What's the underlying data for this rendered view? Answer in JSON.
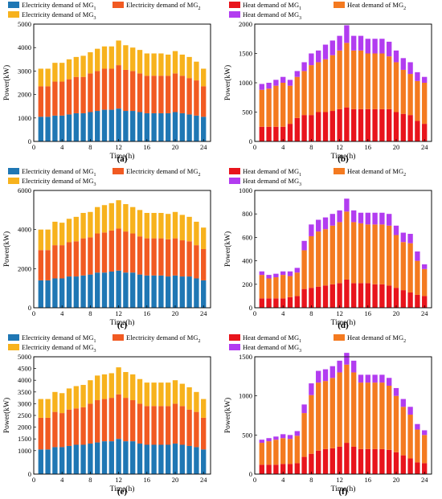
{
  "colors": {
    "elec_mg1": "#1f77b4",
    "elec_mg2": "#f15a22",
    "elec_mg3": "#f7b21d",
    "heat_mg1": "#e8141c",
    "heat_mg2": "#f47a20",
    "heat_mg3": "#b23cf0"
  },
  "chart_data": [
    {
      "panel_label": "(a)",
      "type": "bar",
      "stacked": true,
      "xlabel": "Time(h)",
      "ylabel": "Power(kW)",
      "xlim": [
        0,
        25
      ],
      "ylim": [
        0,
        5000
      ],
      "xticks": [
        "0",
        "4",
        "8",
        "12",
        "16",
        "20",
        "24"
      ],
      "yticks": [
        "0",
        "1000",
        "2000",
        "3000",
        "4000",
        "5000"
      ],
      "legend_position": "top",
      "categories": [
        1,
        2,
        3,
        4,
        5,
        6,
        7,
        8,
        9,
        10,
        11,
        12,
        13,
        14,
        15,
        16,
        17,
        18,
        19,
        20,
        21,
        22,
        23,
        24
      ],
      "series": [
        {
          "name": "Electricity demand of MG",
          "sub": "1",
          "color_key": "elec_mg1",
          "values": [
            1050,
            1050,
            1100,
            1100,
            1150,
            1200,
            1200,
            1250,
            1300,
            1350,
            1350,
            1400,
            1300,
            1300,
            1250,
            1200,
            1200,
            1200,
            1200,
            1250,
            1200,
            1150,
            1100,
            1050
          ]
        },
        {
          "name": "Electricity demand of MG",
          "sub": "2",
          "color_key": "elec_mg2",
          "values": [
            1300,
            1300,
            1450,
            1450,
            1500,
            1550,
            1550,
            1650,
            1700,
            1750,
            1750,
            1850,
            1750,
            1700,
            1650,
            1600,
            1600,
            1600,
            1600,
            1650,
            1600,
            1550,
            1500,
            1300
          ]
        },
        {
          "name": "Electricity demand of MG",
          "sub": "3",
          "color_key": "elec_mg3",
          "values": [
            750,
            750,
            800,
            800,
            850,
            850,
            900,
            900,
            950,
            950,
            950,
            1050,
            1050,
            1000,
            1000,
            950,
            950,
            950,
            900,
            950,
            900,
            900,
            800,
            750
          ]
        }
      ]
    },
    {
      "panel_label": "(b)",
      "type": "bar",
      "stacked": true,
      "xlabel": "Time(h)",
      "ylabel": "Power(kW)",
      "xlim": [
        0,
        25
      ],
      "ylim": [
        0,
        2000
      ],
      "xticks": [
        "0",
        "4",
        "8",
        "12",
        "16",
        "20",
        "24"
      ],
      "yticks": [
        "0",
        "500",
        "1000",
        "1500",
        "2000"
      ],
      "legend_position": "top",
      "categories": [
        1,
        2,
        3,
        4,
        5,
        6,
        7,
        8,
        9,
        10,
        11,
        12,
        13,
        14,
        15,
        16,
        17,
        18,
        19,
        20,
        21,
        22,
        23,
        24
      ],
      "series": [
        {
          "name": "Heat demand of MG",
          "sub": "1",
          "color_key": "heat_mg1",
          "values": [
            250,
            250,
            250,
            250,
            300,
            400,
            450,
            450,
            500,
            500,
            520,
            550,
            580,
            550,
            550,
            550,
            550,
            550,
            550,
            500,
            470,
            450,
            350,
            300
          ]
        },
        {
          "name": "Heat demand of MG",
          "sub": "2",
          "color_key": "heat_mg2",
          "values": [
            630,
            650,
            700,
            750,
            650,
            700,
            750,
            850,
            850,
            900,
            950,
            1000,
            1100,
            1000,
            1000,
            950,
            950,
            950,
            900,
            850,
            750,
            700,
            680,
            700
          ]
        },
        {
          "name": "Heat demand of MG",
          "sub": "3",
          "color_key": "heat_mg3",
          "values": [
            100,
            100,
            100,
            100,
            100,
            100,
            150,
            200,
            200,
            250,
            250,
            250,
            300,
            250,
            250,
            250,
            250,
            250,
            250,
            200,
            200,
            200,
            150,
            100
          ]
        }
      ]
    },
    {
      "panel_label": "(c)",
      "type": "bar",
      "stacked": true,
      "xlabel": "Time(h)",
      "ylabel": "Power(kW)",
      "xlim": [
        0,
        25
      ],
      "ylim": [
        0,
        6000
      ],
      "xticks": [
        "0",
        "4",
        "8",
        "12",
        "16",
        "20",
        "24"
      ],
      "yticks": [
        "0",
        "2000",
        "4000",
        "6000"
      ],
      "legend_position": "top",
      "categories": [
        1,
        2,
        3,
        4,
        5,
        6,
        7,
        8,
        9,
        10,
        11,
        12,
        13,
        14,
        15,
        16,
        17,
        18,
        19,
        20,
        21,
        22,
        23,
        24
      ],
      "series": [
        {
          "name": "Electricity demand of MG",
          "sub": "1",
          "color_key": "elec_mg1",
          "values": [
            1400,
            1400,
            1500,
            1500,
            1600,
            1600,
            1650,
            1700,
            1800,
            1800,
            1850,
            1900,
            1800,
            1800,
            1700,
            1650,
            1650,
            1650,
            1600,
            1650,
            1600,
            1600,
            1500,
            1400
          ]
        },
        {
          "name": "Electricity demand of MG",
          "sub": "2",
          "color_key": "elec_mg2",
          "values": [
            1550,
            1550,
            1700,
            1700,
            1750,
            1800,
            1900,
            1900,
            2000,
            2050,
            2100,
            2150,
            2100,
            2000,
            1950,
            1900,
            1900,
            1900,
            1900,
            1900,
            1850,
            1800,
            1700,
            1600
          ]
        },
        {
          "name": "Electricity demand of MG",
          "sub": "3",
          "color_key": "elec_mg3",
          "values": [
            1050,
            1050,
            1200,
            1150,
            1200,
            1250,
            1300,
            1300,
            1350,
            1400,
            1400,
            1450,
            1400,
            1350,
            1350,
            1300,
            1300,
            1300,
            1300,
            1350,
            1300,
            1250,
            1200,
            1100
          ]
        }
      ]
    },
    {
      "panel_label": "(d)",
      "type": "bar",
      "stacked": true,
      "xlabel": "Time(h)",
      "ylabel": "Power(kW)",
      "xlim": [
        0,
        25
      ],
      "ylim": [
        0,
        1000
      ],
      "xticks": [
        "0",
        "4",
        "8",
        "12",
        "16",
        "20",
        "24"
      ],
      "yticks": [
        "0",
        "200",
        "400",
        "600",
        "800",
        "1000"
      ],
      "legend_position": "top",
      "categories": [
        1,
        2,
        3,
        4,
        5,
        6,
        7,
        8,
        9,
        10,
        11,
        12,
        13,
        14,
        15,
        16,
        17,
        18,
        19,
        20,
        21,
        22,
        23,
        24
      ],
      "series": [
        {
          "name": "Heat demand of MG",
          "sub": "1",
          "color_key": "heat_mg1",
          "values": [
            80,
            80,
            80,
            80,
            90,
            100,
            160,
            170,
            180,
            190,
            200,
            210,
            240,
            210,
            210,
            210,
            200,
            200,
            190,
            170,
            150,
            130,
            110,
            100
          ]
        },
        {
          "name": "Heat demand of MG",
          "sub": "2",
          "color_key": "heat_mg2",
          "values": [
            200,
            170,
            180,
            200,
            180,
            200,
            330,
            440,
            470,
            480,
            500,
            520,
            580,
            520,
            510,
            500,
            510,
            510,
            510,
            450,
            410,
            420,
            290,
            230
          ]
        },
        {
          "name": "Heat demand of MG",
          "sub": "3",
          "color_key": "heat_mg3",
          "values": [
            30,
            30,
            30,
            30,
            40,
            40,
            80,
            100,
            100,
            100,
            100,
            100,
            110,
            100,
            90,
            100,
            100,
            100,
            100,
            80,
            80,
            80,
            80,
            40
          ]
        }
      ]
    },
    {
      "panel_label": "(e)",
      "type": "bar",
      "stacked": true,
      "xlabel": "Time(h)",
      "ylabel": "Power(kW)",
      "xlim": [
        0,
        25
      ],
      "ylim": [
        0,
        5000
      ],
      "xticks": [
        "0",
        "4",
        "8",
        "12",
        "16",
        "20",
        "24"
      ],
      "yticks": [
        "0",
        "1000",
        "1500",
        "2000",
        "2500",
        "3000",
        "3500",
        "4000",
        "4500",
        "5000"
      ],
      "legend_position": "top",
      "categories": [
        1,
        2,
        3,
        4,
        5,
        6,
        7,
        8,
        9,
        10,
        11,
        12,
        13,
        14,
        15,
        16,
        17,
        18,
        19,
        20,
        21,
        22,
        23,
        24
      ],
      "series": [
        {
          "name": "Electricity demand of MG",
          "sub": "1",
          "color_key": "elec_mg1",
          "values": [
            1050,
            1050,
            1150,
            1150,
            1200,
            1250,
            1250,
            1300,
            1350,
            1400,
            1400,
            1500,
            1400,
            1400,
            1300,
            1250,
            1250,
            1250,
            1250,
            1300,
            1250,
            1200,
            1150,
            1050
          ]
        },
        {
          "name": "Electricity demand of MG",
          "sub": "2",
          "color_key": "elec_mg2",
          "values": [
            1350,
            1350,
            1500,
            1450,
            1550,
            1550,
            1600,
            1700,
            1800,
            1800,
            1850,
            1900,
            1850,
            1750,
            1700,
            1650,
            1650,
            1650,
            1650,
            1700,
            1650,
            1550,
            1500,
            1350
          ]
        },
        {
          "name": "Electricity demand of MG",
          "sub": "3",
          "color_key": "elec_mg3",
          "values": [
            800,
            800,
            850,
            850,
            900,
            950,
            950,
            1000,
            1050,
            1050,
            1050,
            1150,
            1100,
            1100,
            1050,
            1000,
            1000,
            1000,
            1000,
            1000,
            950,
            950,
            850,
            800
          ]
        }
      ]
    },
    {
      "panel_label": "(f)",
      "type": "bar",
      "stacked": true,
      "xlabel": "Time(h)",
      "ylabel": "Power(kW)",
      "xlim": [
        0,
        25
      ],
      "ylim": [
        0,
        1500
      ],
      "xticks": [
        "0",
        "4",
        "8",
        "12",
        "16",
        "20",
        "24"
      ],
      "yticks": [
        "0",
        "500",
        "1000",
        "1500"
      ],
      "legend_position": "top",
      "categories": [
        1,
        2,
        3,
        4,
        5,
        6,
        7,
        8,
        9,
        10,
        11,
        12,
        13,
        14,
        15,
        16,
        17,
        18,
        19,
        20,
        21,
        22,
        23,
        24
      ],
      "series": [
        {
          "name": "Heat demand of MG",
          "sub": "1",
          "color_key": "heat_mg1",
          "values": [
            120,
            120,
            120,
            130,
            130,
            140,
            220,
            260,
            300,
            320,
            330,
            350,
            400,
            350,
            320,
            320,
            320,
            320,
            310,
            280,
            240,
            200,
            150,
            140
          ]
        },
        {
          "name": "Heat demand of MG",
          "sub": "2",
          "color_key": "heat_mg2",
          "values": [
            280,
            300,
            320,
            330,
            320,
            350,
            560,
            750,
            870,
            870,
            900,
            950,
            1000,
            950,
            850,
            850,
            850,
            850,
            820,
            720,
            620,
            560,
            420,
            360
          ]
        },
        {
          "name": "Heat demand of MG",
          "sub": "3",
          "color_key": "heat_mg3",
          "values": [
            40,
            40,
            40,
            50,
            50,
            60,
            110,
            150,
            150,
            150,
            150,
            150,
            150,
            150,
            100,
            100,
            100,
            100,
            100,
            100,
            100,
            100,
            70,
            60
          ]
        }
      ]
    }
  ]
}
